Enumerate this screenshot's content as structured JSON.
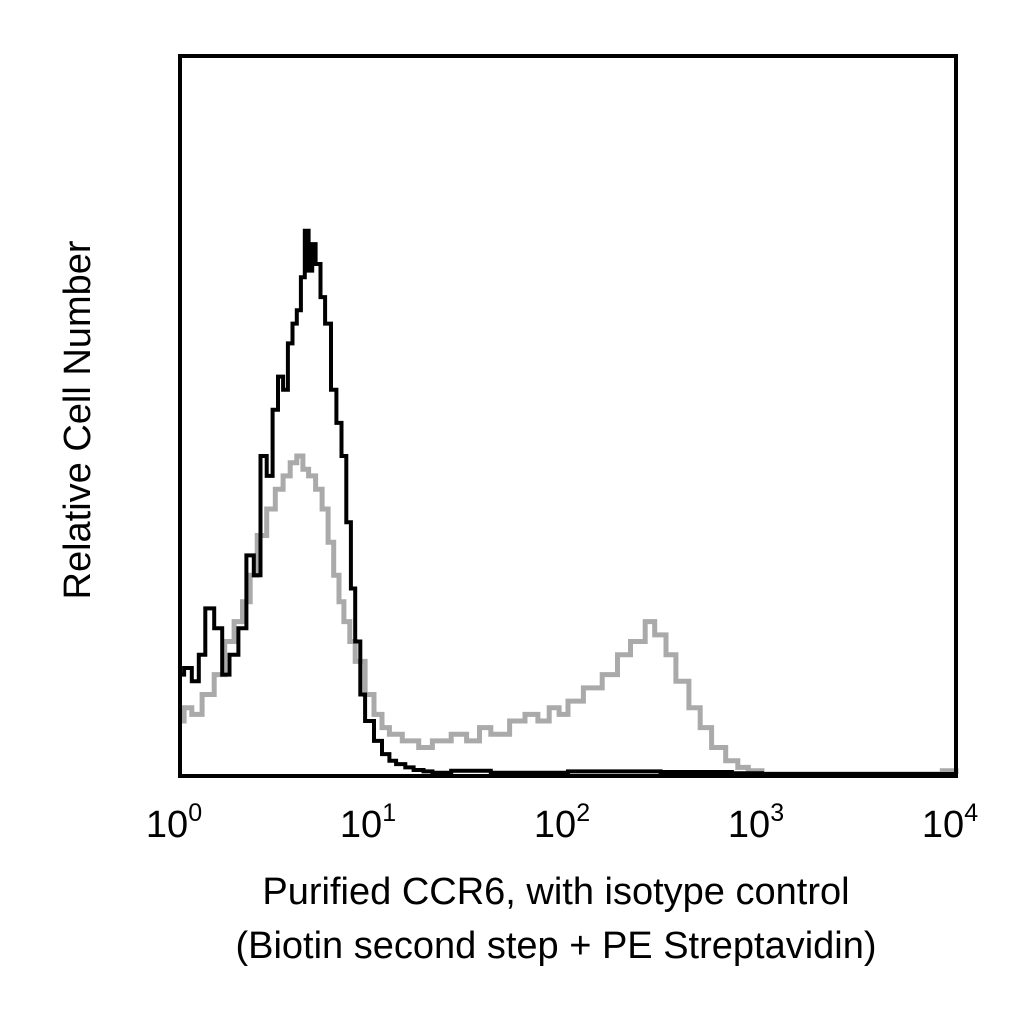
{
  "chart_data": {
    "type": "line",
    "xlabel_lines": [
      "Purified CCR6, with isotype control",
      "(Biotin second step + PE Streptavidin)"
    ],
    "ylabel": "Relative Cell Number",
    "xscale": "log",
    "xlim": [
      1,
      10000
    ],
    "ylim": [
      0,
      1
    ],
    "grid": false,
    "x_ticks": [
      {
        "base": "10",
        "exp": "0",
        "value": 1
      },
      {
        "base": "10",
        "exp": "1",
        "value": 10
      },
      {
        "base": "10",
        "exp": "2",
        "value": 100
      },
      {
        "base": "10",
        "exp": "3",
        "value": 1000
      },
      {
        "base": "10",
        "exp": "4",
        "value": 10000
      }
    ],
    "series": [
      {
        "color": "#000000",
        "x": [
          1.0,
          1.05,
          1.15,
          1.25,
          1.35,
          1.5,
          1.65,
          1.8,
          2.0,
          2.2,
          2.4,
          2.6,
          2.8,
          3.0,
          3.2,
          3.4,
          3.6,
          3.8,
          4.0,
          4.2,
          4.4,
          4.6,
          4.8,
          5.0,
          5.3,
          5.6,
          6.0,
          6.4,
          6.8,
          7.2,
          7.6,
          8.0,
          8.5,
          9.0,
          10.0,
          11.0,
          12.0,
          13.0,
          14.5,
          16.0,
          18.0,
          20.0,
          25.0,
          40.0,
          100.0,
          300.0,
          700.0,
          1000.0,
          10000.0
        ],
        "y": [
          0.15,
          0.16,
          0.14,
          0.18,
          0.25,
          0.22,
          0.15,
          0.18,
          0.22,
          0.33,
          0.3,
          0.48,
          0.45,
          0.55,
          0.6,
          0.58,
          0.65,
          0.68,
          0.7,
          0.75,
          0.82,
          0.76,
          0.8,
          0.77,
          0.72,
          0.68,
          0.58,
          0.53,
          0.48,
          0.38,
          0.28,
          0.2,
          0.12,
          0.08,
          0.05,
          0.03,
          0.02,
          0.015,
          0.01,
          0.006,
          0.004,
          0.002,
          0.005,
          0.002,
          0.004,
          0.003,
          0.001,
          0.0,
          0.0
        ]
      },
      {
        "color": "#aaaaaa",
        "x": [
          1.0,
          1.05,
          1.15,
          1.3,
          1.5,
          1.7,
          1.9,
          2.1,
          2.3,
          2.5,
          2.8,
          3.1,
          3.4,
          3.7,
          4.0,
          4.3,
          4.6,
          5.0,
          5.4,
          5.8,
          6.2,
          6.6,
          7.0,
          7.5,
          8.0,
          9.0,
          10.0,
          11.0,
          12.0,
          14.0,
          17.0,
          20.0,
          25.0,
          30.0,
          35.0,
          40.0,
          50.0,
          60.0,
          70.0,
          80.0,
          90.0,
          100.0,
          120.0,
          150.0,
          180.0,
          210.0,
          250.0,
          280.0,
          320.0,
          360.0,
          420.0,
          480.0,
          550.0,
          650.0,
          750.0,
          850.0,
          1000.0,
          2000.0,
          5000.0,
          8500.0,
          10000.0
        ],
        "y": [
          0.08,
          0.1,
          0.09,
          0.12,
          0.15,
          0.2,
          0.23,
          0.26,
          0.3,
          0.36,
          0.4,
          0.43,
          0.45,
          0.47,
          0.48,
          0.46,
          0.45,
          0.43,
          0.4,
          0.35,
          0.3,
          0.26,
          0.23,
          0.2,
          0.17,
          0.12,
          0.09,
          0.07,
          0.06,
          0.05,
          0.04,
          0.05,
          0.06,
          0.05,
          0.07,
          0.06,
          0.08,
          0.09,
          0.08,
          0.1,
          0.09,
          0.11,
          0.13,
          0.15,
          0.18,
          0.2,
          0.23,
          0.21,
          0.18,
          0.14,
          0.1,
          0.07,
          0.04,
          0.02,
          0.01,
          0.005,
          0.0,
          0.0,
          0.0,
          0.005,
          0.0
        ]
      }
    ]
  }
}
